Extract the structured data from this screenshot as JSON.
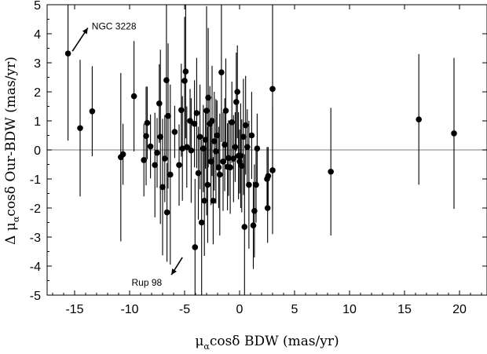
{
  "chart_data": {
    "type": "scatter",
    "xlabel": "μαcosδ BDW (mas/yr)",
    "ylabel": "Δ μαcosδ Our-BDW (mas/yr)",
    "xlim": [
      -17.5,
      22.5
    ],
    "ylim": [
      -5,
      5
    ],
    "x_ticks": [
      -15,
      -10,
      -5,
      0,
      5,
      10,
      15,
      20
    ],
    "y_ticks": [
      -5,
      -4,
      -3,
      -2,
      -1,
      0,
      1,
      2,
      3,
      4,
      5
    ],
    "grid": false,
    "zero_line": true,
    "colors": {
      "points": "#000000",
      "zero_line": "#999999"
    },
    "annotations": [
      {
        "text": "NGC 3228",
        "arrow_from": [
          -15.2,
          3.4
        ],
        "arrow_to": [
          -13.8,
          4.2
        ]
      },
      {
        "text": "Rup 98",
        "arrow_from": [
          -5.2,
          -3.7
        ],
        "arrow_to": [
          -6.2,
          -4.3
        ]
      }
    ],
    "points": [
      {
        "x": -15.6,
        "y": 3.32,
        "e": 3.0
      },
      {
        "x": -14.5,
        "y": 0.75,
        "e": 2.35
      },
      {
        "x": -13.4,
        "y": 1.33,
        "e": 1.55
      },
      {
        "x": -10.8,
        "y": -0.25,
        "e": 2.9
      },
      {
        "x": -10.6,
        "y": -0.15,
        "e": 1.05
      },
      {
        "x": -9.6,
        "y": 1.85,
        "e": 1.9
      },
      {
        "x": -8.7,
        "y": -0.35,
        "e": 1.25
      },
      {
        "x": -8.5,
        "y": 0.48,
        "e": 1.7
      },
      {
        "x": -8.4,
        "y": 0.93,
        "e": 1.25
      },
      {
        "x": -8.1,
        "y": 0.12,
        "e": 1.1
      },
      {
        "x": -7.7,
        "y": -0.52,
        "e": 1.8
      },
      {
        "x": -7.5,
        "y": -0.1,
        "e": 1.2
      },
      {
        "x": -7.3,
        "y": 1.6,
        "e": 1.35
      },
      {
        "x": -7.2,
        "y": 0.45,
        "e": 3.0
      },
      {
        "x": -7.0,
        "y": -1.28,
        "e": 2.35
      },
      {
        "x": -6.8,
        "y": -0.3,
        "e": 1.5
      },
      {
        "x": -6.65,
        "y": 2.4,
        "e": 2.7
      },
      {
        "x": -6.6,
        "y": -2.15,
        "e": 1.7
      },
      {
        "x": -6.5,
        "y": 1.17,
        "e": 2.5
      },
      {
        "x": -6.3,
        "y": -0.85,
        "e": 3.1
      },
      {
        "x": -5.9,
        "y": 0.62,
        "e": 0.9
      },
      {
        "x": -5.5,
        "y": -0.52,
        "e": 1.4
      },
      {
        "x": -5.3,
        "y": 1.37,
        "e": 1.6
      },
      {
        "x": -5.2,
        "y": 0.05,
        "e": 1.8
      },
      {
        "x": -5.0,
        "y": 2.38,
        "e": 2.2
      },
      {
        "x": -4.9,
        "y": 2.7,
        "e": 2.3
      },
      {
        "x": -4.8,
        "y": 0.1,
        "e": 1.4
      },
      {
        "x": -4.5,
        "y": 1.0,
        "e": 1.1
      },
      {
        "x": -4.4,
        "y": -0.02,
        "e": 1.8
      },
      {
        "x": -4.1,
        "y": 0.9,
        "e": 1.5
      },
      {
        "x": -4.05,
        "y": -3.35,
        "e": 2.35
      },
      {
        "x": -3.9,
        "y": 1.27,
        "e": 1.9
      },
      {
        "x": -3.75,
        "y": -0.8,
        "e": 1.6
      },
      {
        "x": -3.6,
        "y": 0.45,
        "e": 1.8
      },
      {
        "x": -3.45,
        "y": -2.5,
        "e": 2.85
      },
      {
        "x": -3.3,
        "y": 0.05,
        "e": 1.5
      },
      {
        "x": -3.2,
        "y": -1.75,
        "e": 1.9
      },
      {
        "x": -3.1,
        "y": 0.35,
        "e": 1.0
      },
      {
        "x": -3.0,
        "y": 1.35,
        "e": 3.6
      },
      {
        "x": -2.9,
        "y": -1.2,
        "e": 2.0
      },
      {
        "x": -2.85,
        "y": 1.8,
        "e": 2.4
      },
      {
        "x": -2.7,
        "y": 0.9,
        "e": 1.3
      },
      {
        "x": -2.6,
        "y": -0.4,
        "e": 1.5
      },
      {
        "x": -2.5,
        "y": 1.0,
        "e": 1.9
      },
      {
        "x": -2.4,
        "y": -1.75,
        "e": 1.5
      },
      {
        "x": -2.3,
        "y": 0.3,
        "e": 1.7
      },
      {
        "x": -2.15,
        "y": -0.05,
        "e": 1.8
      },
      {
        "x": -2.05,
        "y": 0.5,
        "e": 1.2
      },
      {
        "x": -1.9,
        "y": -0.6,
        "e": 1.4
      },
      {
        "x": -1.8,
        "y": -0.85,
        "e": 2.1
      },
      {
        "x": -1.65,
        "y": 2.67,
        "e": 2.4
      },
      {
        "x": -1.5,
        "y": -0.4,
        "e": 1.7
      },
      {
        "x": -1.35,
        "y": 0.18,
        "e": 1.6
      },
      {
        "x": -1.25,
        "y": 1.35,
        "e": 1.8
      },
      {
        "x": -1.1,
        "y": -0.58,
        "e": 1.5
      },
      {
        "x": -1.0,
        "y": -0.28,
        "e": 1.3
      },
      {
        "x": -0.85,
        "y": -0.6,
        "e": 1.6
      },
      {
        "x": -0.7,
        "y": 0.95,
        "e": 1.4
      },
      {
        "x": -0.55,
        "y": -0.3,
        "e": 1.5
      },
      {
        "x": -0.4,
        "y": 0.1,
        "e": 1.2
      },
      {
        "x": -0.3,
        "y": 1.65,
        "e": 1.7
      },
      {
        "x": -0.2,
        "y": 2.0,
        "e": 1.6
      },
      {
        "x": -0.1,
        "y": -0.2,
        "e": 1.5
      },
      {
        "x": 0.0,
        "y": -0.4,
        "e": 1.1
      },
      {
        "x": 0.1,
        "y": -0.2,
        "e": 1.8
      },
      {
        "x": 0.2,
        "y": -0.55,
        "e": 1.6
      },
      {
        "x": 0.35,
        "y": 0.45,
        "e": 2.0
      },
      {
        "x": 0.45,
        "y": -2.65,
        "e": 2.5
      },
      {
        "x": 0.55,
        "y": 0.85,
        "e": 1.7
      },
      {
        "x": 0.7,
        "y": 0.1,
        "e": 1.3
      },
      {
        "x": 0.85,
        "y": -1.2,
        "e": 2.2
      },
      {
        "x": 1.1,
        "y": 0.5,
        "e": 1.5
      },
      {
        "x": 1.25,
        "y": -2.6,
        "e": 1.5
      },
      {
        "x": 1.35,
        "y": -2.1,
        "e": 1.6
      },
      {
        "x": 1.5,
        "y": -1.2,
        "e": 1.3
      },
      {
        "x": 1.6,
        "y": 0.05,
        "e": 1.2
      },
      {
        "x": 2.5,
        "y": -1.0,
        "e": 1.1
      },
      {
        "x": 2.55,
        "y": -2.0,
        "e": 1.2
      },
      {
        "x": 2.6,
        "y": -0.9,
        "e": 1.0
      },
      {
        "x": 3.0,
        "y": -0.7,
        "e": 2.2
      },
      {
        "x": 3.0,
        "y": 2.1,
        "e": 4.2
      },
      {
        "x": 8.3,
        "y": -0.75,
        "e": 2.2
      },
      {
        "x": 16.3,
        "y": 1.05,
        "e": 2.25
      },
      {
        "x": 19.5,
        "y": 0.57,
        "e": 2.6
      }
    ]
  }
}
